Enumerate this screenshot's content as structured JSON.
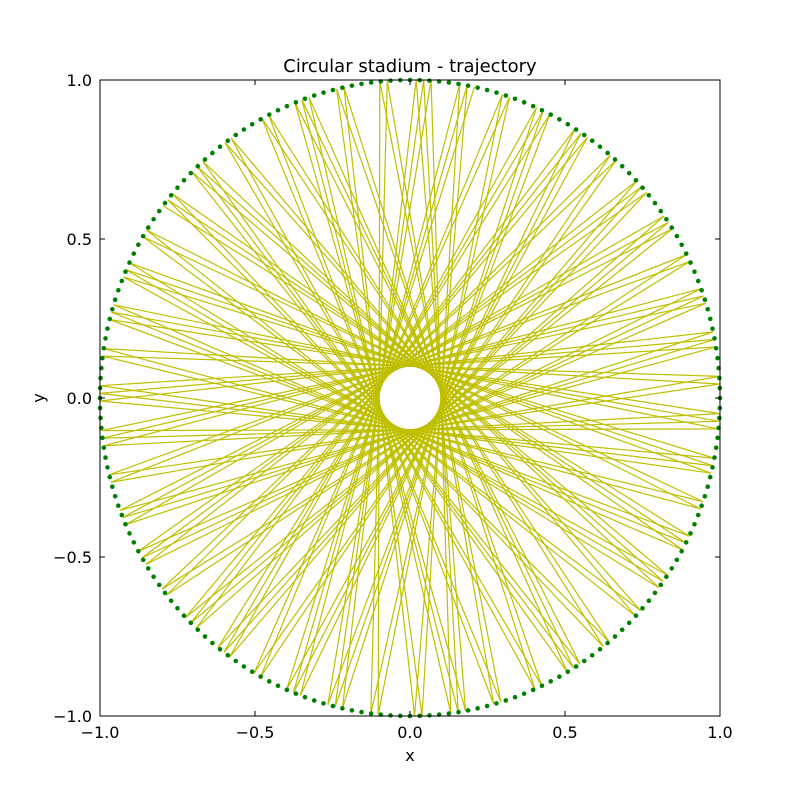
{
  "chart_data": {
    "type": "line",
    "title": "Circular stadium - trajectory",
    "xlabel": "x",
    "ylabel": "y",
    "xlim": [
      -1.0,
      1.0
    ],
    "ylim": [
      -1.0,
      1.0
    ],
    "xticks": [
      "−1.0",
      "−0.5",
      "0.0",
      "0.5",
      "1.0"
    ],
    "yticks": [
      "−1.0",
      "−0.5",
      "0.0",
      "0.5",
      "1.0"
    ],
    "grid": false,
    "boundary": {
      "name": "",
      "shape": "circle",
      "radius": 1.0,
      "marker": "dot",
      "color": "#008000"
    },
    "series": [
      {
        "name": "",
        "color": "#bfbf00",
        "description": "billiard trajectory inside unit circle, chords tangent to caustic radius ~0.1",
        "caustic_radius": 0.1,
        "chord_count": 120,
        "chord_step_deg": 168.54,
        "start_angle_deg": 78
      }
    ]
  },
  "colors": {
    "trajectory": "#bfbf00",
    "boundary_points": "#008000",
    "axes": "#000000",
    "background": "#ffffff"
  }
}
